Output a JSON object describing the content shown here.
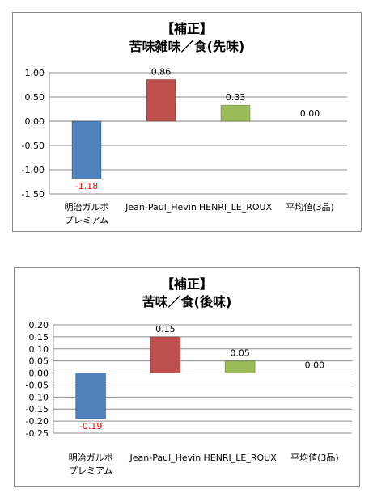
{
  "chart_data": [
    {
      "type": "bar",
      "title": "【補正】",
      "subtitle": "苦味雑味／食(先味)",
      "categories": [
        "明治ガルボ\nプレミアム",
        "Jean-Paul_Hevin",
        "HENRI_LE_ROUX",
        "平均値(3品)"
      ],
      "values": [
        -1.18,
        0.86,
        0.33,
        0.0
      ],
      "value_labels": [
        "-1.18",
        "0.86",
        "0.33",
        "0.00"
      ],
      "ylim": [
        -1.5,
        1.0
      ],
      "yticks": [
        "1.00",
        "0.50",
        "0.00",
        "-0.50",
        "-1.00",
        "-1.50"
      ],
      "grid": true,
      "colors": [
        "#4f81bd",
        "#c0504d",
        "#9bbb59",
        "#8064a2"
      ],
      "negative_label_color": "#ff0000"
    },
    {
      "type": "bar",
      "title": "【補正】",
      "subtitle": "苦味／食(後味)",
      "categories": [
        "明治ガルボ\nプレミアム",
        "Jean-Paul_Hevin",
        "HENRI_LE_ROUX",
        "平均値(3品)"
      ],
      "values": [
        -0.19,
        0.15,
        0.05,
        0.0
      ],
      "value_labels": [
        "-0.19",
        "0.15",
        "0.05",
        "0.00"
      ],
      "ylim": [
        -0.25,
        0.2
      ],
      "yticks": [
        "0.20",
        "0.15",
        "0.10",
        "0.05",
        "0.00",
        "-0.05",
        "-0.10",
        "-0.15",
        "-0.20",
        "-0.25"
      ],
      "grid": true,
      "colors": [
        "#4f81bd",
        "#c0504d",
        "#9bbb59",
        "#8064a2"
      ],
      "negative_label_color": "#ff0000"
    }
  ]
}
